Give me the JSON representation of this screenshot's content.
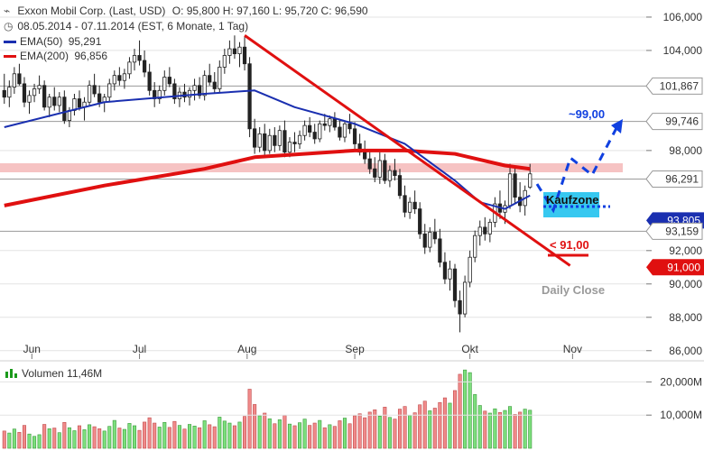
{
  "header": {
    "title": "Exxon Mobil Corp. (Last, USD)",
    "ohlc": "O: 95,800  H: 97,160  L: 95,720  C: 96,590",
    "range": "08.05.2014 - 07.11.2014 (EST, 6 Monate, 1 Tag)"
  },
  "legend": {
    "ema50_label": "EMA(50)",
    "ema50_value": "95,291",
    "ema200_label": "EMA(200)",
    "ema200_value": "96,856",
    "volume_label": "Volumen",
    "volume_value": "11,46M"
  },
  "annotations": {
    "target": "~99,00",
    "kaufzone": "Kaufzone",
    "stop": "< 91,00",
    "daily_close": "Daily Close"
  },
  "colors": {
    "candle_up": "#ffffff",
    "candle_down": "#222222",
    "ema50": "#1a2fb0",
    "ema200": "#e01010",
    "trendline": "#e01010",
    "zone": "#f4b8b8",
    "kaufzone": "#37c8f0",
    "forecast": "#1040e0",
    "vol_up": "#7ddf7d",
    "vol_down": "#f08a8a"
  },
  "chart_data": {
    "type": "candlestick",
    "x_labels": [
      "Jun",
      "Jul",
      "Aug",
      "Sep",
      "Okt",
      "Nov"
    ],
    "y_ticks": [
      "106,000",
      "104,000",
      "98,000",
      "92,000",
      "90,000",
      "88,000",
      "86,000"
    ],
    "ylim": [
      85.5,
      106.7
    ],
    "horizontal_levels": [
      {
        "label": "101,867",
        "value": 101.867,
        "style": "arrow-grey"
      },
      {
        "label": "99,746",
        "value": 99.746,
        "style": "arrow-grey"
      },
      {
        "label": "96,291",
        "value": 96.291,
        "style": "arrow-grey"
      },
      {
        "label": "93,805",
        "value": 93.805,
        "style": "blue"
      },
      {
        "label": "93,159",
        "value": 93.159,
        "style": "arrow-grey"
      },
      {
        "label": "91,000",
        "value": 91.0,
        "style": "red"
      }
    ],
    "volume_ticks": [
      "20,000M",
      "10,000M"
    ],
    "volume_max": 25,
    "candles": [
      [
        101.6,
        102.6,
        100.8,
        101.2
      ],
      [
        101.2,
        102.2,
        100.6,
        101.8
      ],
      [
        101.8,
        103.0,
        101.4,
        102.6
      ],
      [
        102.6,
        103.2,
        101.9,
        102.0
      ],
      [
        102.0,
        102.4,
        100.6,
        100.9
      ],
      [
        100.9,
        101.6,
        100.2,
        101.3
      ],
      [
        101.3,
        102.0,
        100.9,
        101.7
      ],
      [
        101.7,
        102.5,
        101.4,
        101.9
      ],
      [
        101.9,
        102.2,
        100.4,
        100.6
      ],
      [
        100.6,
        101.4,
        100.0,
        101.2
      ],
      [
        101.2,
        101.8,
        100.4,
        100.7
      ],
      [
        100.7,
        101.5,
        100.3,
        101.2
      ],
      [
        101.2,
        101.6,
        99.6,
        99.8
      ],
      [
        99.8,
        100.6,
        99.4,
        100.4
      ],
      [
        100.4,
        101.4,
        100.1,
        101.1
      ],
      [
        101.1,
        101.6,
        100.4,
        100.6
      ],
      [
        100.6,
        101.2,
        99.8,
        100.9
      ],
      [
        100.9,
        102.2,
        100.7,
        101.9
      ],
      [
        101.9,
        102.6,
        101.2,
        101.4
      ],
      [
        101.4,
        101.9,
        100.6,
        100.9
      ],
      [
        100.9,
        101.4,
        100.3,
        101.2
      ],
      [
        101.2,
        102.3,
        100.9,
        102.0
      ],
      [
        102.0,
        102.8,
        101.6,
        102.5
      ],
      [
        102.5,
        103.0,
        101.9,
        102.2
      ],
      [
        102.2,
        102.9,
        101.7,
        102.6
      ],
      [
        102.6,
        103.6,
        102.3,
        103.3
      ],
      [
        103.3,
        104.1,
        102.8,
        103.7
      ],
      [
        103.7,
        104.6,
        103.1,
        103.4
      ],
      [
        103.4,
        104.0,
        102.4,
        102.7
      ],
      [
        102.7,
        103.2,
        101.3,
        101.6
      ],
      [
        101.6,
        102.1,
        100.6,
        101.1
      ],
      [
        101.1,
        101.9,
        100.8,
        101.6
      ],
      [
        101.6,
        102.8,
        101.3,
        102.4
      ],
      [
        102.4,
        103.0,
        101.8,
        102.0
      ],
      [
        102.0,
        102.3,
        100.8,
        101.1
      ],
      [
        101.1,
        101.8,
        100.6,
        101.5
      ],
      [
        101.5,
        102.0,
        100.9,
        101.2
      ],
      [
        101.2,
        101.8,
        100.7,
        101.6
      ],
      [
        101.6,
        102.3,
        101.0,
        101.9
      ],
      [
        101.9,
        102.4,
        101.1,
        101.3
      ],
      [
        101.3,
        102.8,
        101.0,
        102.5
      ],
      [
        102.5,
        103.2,
        101.9,
        102.1
      ],
      [
        102.1,
        102.7,
        101.4,
        101.7
      ],
      [
        101.7,
        103.4,
        101.5,
        103.0
      ],
      [
        103.0,
        104.1,
        102.6,
        103.7
      ],
      [
        103.7,
        104.6,
        103.2,
        104.1
      ],
      [
        104.1,
        104.9,
        103.5,
        103.8
      ],
      [
        103.8,
        104.5,
        103.0,
        104.2
      ],
      [
        104.2,
        104.8,
        102.8,
        103.2
      ],
      [
        103.2,
        103.6,
        98.8,
        99.3
      ],
      [
        99.3,
        99.9,
        97.8,
        98.2
      ],
      [
        98.2,
        99.4,
        97.9,
        99.0
      ],
      [
        99.0,
        99.6,
        97.6,
        98.0
      ],
      [
        98.0,
        99.3,
        97.8,
        98.9
      ],
      [
        98.9,
        99.4,
        97.9,
        98.3
      ],
      [
        98.3,
        99.5,
        98.0,
        99.2
      ],
      [
        99.2,
        99.8,
        97.6,
        97.9
      ],
      [
        97.9,
        98.8,
        97.6,
        98.5
      ],
      [
        98.5,
        99.1,
        97.9,
        98.4
      ],
      [
        98.4,
        99.2,
        98.1,
        98.9
      ],
      [
        98.9,
        99.8,
        98.6,
        99.5
      ],
      [
        99.5,
        100.0,
        98.8,
        99.1
      ],
      [
        99.1,
        99.6,
        98.4,
        98.7
      ],
      [
        98.7,
        99.8,
        98.5,
        99.6
      ],
      [
        99.6,
        100.2,
        99.2,
        99.5
      ],
      [
        99.5,
        100.1,
        99.1,
        99.9
      ],
      [
        99.9,
        100.3,
        99.2,
        99.4
      ],
      [
        99.4,
        99.9,
        98.6,
        98.8
      ],
      [
        98.8,
        99.8,
        98.5,
        99.6
      ],
      [
        99.6,
        100.2,
        99.0,
        99.3
      ],
      [
        99.3,
        99.7,
        98.1,
        98.4
      ],
      [
        98.4,
        99.0,
        97.7,
        97.9
      ],
      [
        97.9,
        98.6,
        97.2,
        97.5
      ],
      [
        97.5,
        98.1,
        96.6,
        96.9
      ],
      [
        96.9,
        97.6,
        96.1,
        96.4
      ],
      [
        96.4,
        97.9,
        96.0,
        97.4
      ],
      [
        97.4,
        97.8,
        96.0,
        96.2
      ],
      [
        96.2,
        97.1,
        95.8,
        96.8
      ],
      [
        96.8,
        97.5,
        96.2,
        96.5
      ],
      [
        96.5,
        96.9,
        95.1,
        95.3
      ],
      [
        95.3,
        95.9,
        94.0,
        94.3
      ],
      [
        94.3,
        95.2,
        93.9,
        94.9
      ],
      [
        94.9,
        95.6,
        94.2,
        94.5
      ],
      [
        94.5,
        94.9,
        92.7,
        93.0
      ],
      [
        93.0,
        93.6,
        91.8,
        92.2
      ],
      [
        92.2,
        93.4,
        91.9,
        93.1
      ],
      [
        93.1,
        93.9,
        92.4,
        92.7
      ],
      [
        92.7,
        93.3,
        91.0,
        91.3
      ],
      [
        91.3,
        91.9,
        90.0,
        90.3
      ],
      [
        90.3,
        91.4,
        89.6,
        90.9
      ],
      [
        90.9,
        91.2,
        88.6,
        89.0
      ],
      [
        89.0,
        89.6,
        87.1,
        88.2
      ],
      [
        88.2,
        90.5,
        88.0,
        90.1
      ],
      [
        90.1,
        92.0,
        89.8,
        91.6
      ],
      [
        91.6,
        93.2,
        91.3,
        92.9
      ],
      [
        92.9,
        93.8,
        92.3,
        93.4
      ],
      [
        93.4,
        94.0,
        92.6,
        93.0
      ],
      [
        93.0,
        93.9,
        92.5,
        93.7
      ],
      [
        93.7,
        95.2,
        93.4,
        94.8
      ],
      [
        94.8,
        95.6,
        93.9,
        94.3
      ],
      [
        94.3,
        95.0,
        93.6,
        94.7
      ],
      [
        94.7,
        97.2,
        94.5,
        96.6
      ],
      [
        96.6,
        97.0,
        94.8,
        95.2
      ],
      [
        95.2,
        96.1,
        94.3,
        94.7
      ],
      [
        94.7,
        95.9,
        94.1,
        95.6
      ],
      [
        95.8,
        97.2,
        95.7,
        96.6
      ]
    ],
    "volumes": [
      [
        5.2,
        0
      ],
      [
        4.6,
        1
      ],
      [
        5.8,
        1
      ],
      [
        4.8,
        0
      ],
      [
        6.9,
        0
      ],
      [
        4.3,
        1
      ],
      [
        3.6,
        1
      ],
      [
        4.1,
        1
      ],
      [
        7.2,
        0
      ],
      [
        5.9,
        1
      ],
      [
        6.1,
        0
      ],
      [
        4.7,
        1
      ],
      [
        7.8,
        0
      ],
      [
        6.2,
        1
      ],
      [
        5.3,
        1
      ],
      [
        6.8,
        0
      ],
      [
        5.6,
        1
      ],
      [
        7.1,
        1
      ],
      [
        6.5,
        0
      ],
      [
        5.9,
        0
      ],
      [
        5.2,
        1
      ],
      [
        6.6,
        1
      ],
      [
        8.4,
        1
      ],
      [
        6.1,
        0
      ],
      [
        5.7,
        1
      ],
      [
        7.5,
        1
      ],
      [
        6.8,
        1
      ],
      [
        5.4,
        0
      ],
      [
        7.9,
        0
      ],
      [
        9.2,
        0
      ],
      [
        7.6,
        0
      ],
      [
        6.4,
        1
      ],
      [
        7.8,
        1
      ],
      [
        6.3,
        0
      ],
      [
        8.1,
        0
      ],
      [
        6.9,
        1
      ],
      [
        5.8,
        0
      ],
      [
        7.2,
        1
      ],
      [
        6.7,
        1
      ],
      [
        6.2,
        0
      ],
      [
        8.3,
        1
      ],
      [
        7.1,
        0
      ],
      [
        6.5,
        0
      ],
      [
        9.4,
        1
      ],
      [
        8.2,
        1
      ],
      [
        7.6,
        1
      ],
      [
        6.8,
        0
      ],
      [
        7.9,
        1
      ],
      [
        9.6,
        0
      ],
      [
        17.8,
        0
      ],
      [
        13.2,
        0
      ],
      [
        9.8,
        1
      ],
      [
        10.6,
        0
      ],
      [
        8.9,
        1
      ],
      [
        7.4,
        0
      ],
      [
        8.6,
        1
      ],
      [
        9.9,
        0
      ],
      [
        7.3,
        1
      ],
      [
        6.8,
        0
      ],
      [
        7.7,
        1
      ],
      [
        8.8,
        1
      ],
      [
        6.9,
        0
      ],
      [
        7.6,
        0
      ],
      [
        8.4,
        1
      ],
      [
        6.2,
        0
      ],
      [
        7.1,
        1
      ],
      [
        6.6,
        0
      ],
      [
        8.3,
        0
      ],
      [
        9.1,
        1
      ],
      [
        7.4,
        0
      ],
      [
        9.8,
        0
      ],
      [
        10.4,
        0
      ],
      [
        9.2,
        0
      ],
      [
        10.9,
        0
      ],
      [
        11.6,
        0
      ],
      [
        9.7,
        1
      ],
      [
        12.4,
        0
      ],
      [
        9.3,
        1
      ],
      [
        8.8,
        0
      ],
      [
        11.8,
        0
      ],
      [
        12.6,
        0
      ],
      [
        9.9,
        1
      ],
      [
        10.7,
        0
      ],
      [
        13.1,
        0
      ],
      [
        14.2,
        0
      ],
      [
        11.3,
        1
      ],
      [
        12.1,
        0
      ],
      [
        13.8,
        0
      ],
      [
        15.2,
        0
      ],
      [
        13.6,
        1
      ],
      [
        17.4,
        0
      ],
      [
        22.3,
        0
      ],
      [
        23.6,
        1
      ],
      [
        22.8,
        1
      ],
      [
        16.2,
        1
      ],
      [
        12.9,
        1
      ],
      [
        11.2,
        0
      ],
      [
        10.6,
        1
      ],
      [
        11.9,
        1
      ],
      [
        10.8,
        0
      ],
      [
        11.4,
        1
      ],
      [
        12.6,
        1
      ],
      [
        10.2,
        0
      ],
      [
        10.9,
        0
      ],
      [
        11.8,
        1
      ],
      [
        11.46,
        1
      ]
    ],
    "ema50": [
      [
        0,
        99.4
      ],
      [
        20,
        100.9
      ],
      [
        40,
        101.4
      ],
      [
        50,
        101.6
      ],
      [
        58,
        100.6
      ],
      [
        70,
        99.6
      ],
      [
        80,
        98.4
      ],
      [
        90,
        96.2
      ],
      [
        95,
        94.9
      ],
      [
        100,
        94.5
      ],
      [
        105,
        95.3
      ]
    ],
    "ema200": [
      [
        0,
        94.7
      ],
      [
        20,
        95.9
      ],
      [
        40,
        96.9
      ],
      [
        50,
        97.6
      ],
      [
        70,
        98.0
      ],
      [
        80,
        98.0
      ],
      [
        90,
        97.8
      ],
      [
        100,
        97.1
      ],
      [
        105,
        96.9
      ]
    ],
    "trendline": [
      [
        48,
        104.9
      ],
      [
        113,
        91.1
      ]
    ]
  }
}
